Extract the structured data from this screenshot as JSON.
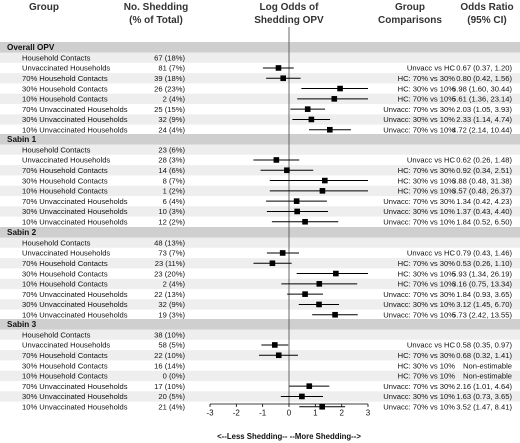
{
  "chart_data": {
    "type": "forest",
    "columns": {
      "group": "Group",
      "shedding": [
        "No. Shedding",
        "(% of Total)"
      ],
      "plot": [
        "Log Odds of",
        "Shedding OPV"
      ],
      "comparison": [
        "Group",
        "Comparisons"
      ],
      "odds_ratio": [
        "Odds Ratio",
        "(95% CI)"
      ]
    },
    "x_axis": {
      "range": [
        -3,
        3
      ],
      "ticks": [
        "-3",
        "-2",
        "-1",
        "0",
        "1",
        "2",
        "3"
      ],
      "caption": "<--Less Shedding-- --More Shedding-->",
      "reference_line": 0
    },
    "sections": [
      {
        "title": "Overall OPV",
        "rows": [
          {
            "group": "Household Contacts",
            "shed": "67 (18%)",
            "comparison": "",
            "or_text": "",
            "est": null,
            "lo": null,
            "hi": null
          },
          {
            "group": "Unvaccinated Households",
            "shed": "81 (7%)",
            "comparison": "Unvacc vs HC",
            "or_text": "0.67 (0.37, 1.20)",
            "est": -0.4,
            "lo": -0.99,
            "hi": 0.18
          },
          {
            "group": "70% Household Contacts",
            "shed": "39 (18%)",
            "comparison": "HC: 70% vs 30%",
            "or_text": "0.80 (0.42, 1.56)",
            "est": -0.22,
            "lo": -0.87,
            "hi": 0.44
          },
          {
            "group": "30% Household Contacts",
            "shed": "26 (23%)",
            "comparison": "HC: 30% vs 10%",
            "or_text": "6.98 (1.60, 30.44)",
            "est": 1.94,
            "lo": 0.47,
            "hi": 3.42
          },
          {
            "group": "10% Household Contacts",
            "shed": "2 (4%)",
            "comparison": "HC: 70% vs 10%",
            "or_text": "5.61 (1.36, 23.14)",
            "est": 1.72,
            "lo": 0.31,
            "hi": 3.14
          },
          {
            "group": "70% Unvaccinated Households",
            "shed": "25 (15%)",
            "comparison": "Unvacc: 70% vs 30%",
            "or_text": "2.03 (1.05, 3.93)",
            "est": 0.71,
            "lo": 0.05,
            "hi": 1.37
          },
          {
            "group": "30% Unvaccinated Households",
            "shed": "32 (9%)",
            "comparison": "Unvacc: 30% vs 10%",
            "or_text": "2.33 (1.14, 4.74)",
            "est": 0.85,
            "lo": 0.13,
            "hi": 1.56
          },
          {
            "group": "10% Unvaccinated Households",
            "shed": "24 (4%)",
            "comparison": "Unvacc: 70% vs 10%",
            "or_text": "4.72 (2.14, 10.44)",
            "est": 1.55,
            "lo": 0.76,
            "hi": 2.35
          }
        ]
      },
      {
        "title": "Sabin 1",
        "rows": [
          {
            "group": "Household Contacts",
            "shed": "23 (6%)",
            "comparison": "",
            "or_text": "",
            "est": null,
            "lo": null,
            "hi": null
          },
          {
            "group": "Unvaccinated Households",
            "shed": "28 (3%)",
            "comparison": "Unvacc vs HC",
            "or_text": "0.62 (0.26, 1.48)",
            "est": -0.48,
            "lo": -1.35,
            "hi": 0.39
          },
          {
            "group": "70% Household Contacts",
            "shed": "14 (6%)",
            "comparison": "HC: 70% vs 30%",
            "or_text": "0.92 (0.34, 2.51)",
            "est": -0.08,
            "lo": -1.08,
            "hi": 0.92
          },
          {
            "group": "30% Household Contacts",
            "shed": "8 (7%)",
            "comparison": "HC: 30% vs 10%",
            "or_text": "3.88 (0.48, 31.38)",
            "est": 1.36,
            "lo": -0.73,
            "hi": 3.45
          },
          {
            "group": "10% Household Contacts",
            "shed": "1 (2%)",
            "comparison": "HC: 70% vs 10%",
            "or_text": "3.57 (0.48, 26.37)",
            "est": 1.27,
            "lo": -0.73,
            "hi": 3.27
          },
          {
            "group": "70% Unvaccinated Households",
            "shed": "6 (4%)",
            "comparison": "Unvacc: 70% vs 30%",
            "or_text": "1.34 (0.42, 4.23)",
            "est": 0.29,
            "lo": -0.87,
            "hi": 1.44
          },
          {
            "group": "30% Unvaccinated Households",
            "shed": "10 (3%)",
            "comparison": "Unvacc: 30% vs 10%",
            "or_text": "1.37 (0.43, 4.40)",
            "est": 0.31,
            "lo": -0.84,
            "hi": 1.48
          },
          {
            "group": "10% Unvaccinated Households",
            "shed": "12 (2%)",
            "comparison": "Unvacc: 70% vs 10%",
            "or_text": "1.84 (0.52, 6.50)",
            "est": 0.61,
            "lo": -0.65,
            "hi": 1.87
          }
        ]
      },
      {
        "title": "Sabin 2",
        "rows": [
          {
            "group": "Household Contacts",
            "shed": "48 (13%)",
            "comparison": "",
            "or_text": "",
            "est": null,
            "lo": null,
            "hi": null
          },
          {
            "group": "Unvaccinated Households",
            "shed": "73 (7%)",
            "comparison": "Unvacc vs HC",
            "or_text": "0.79 (0.43, 1.46)",
            "est": -0.24,
            "lo": -0.84,
            "hi": 0.38
          },
          {
            "group": "70% Household Contacts",
            "shed": "23 (11%)",
            "comparison": "HC: 70% vs 30%",
            "or_text": "0.53 (0.26, 1.10)",
            "est": -0.63,
            "lo": -1.35,
            "hi": 0.1
          },
          {
            "group": "30% Household Contacts",
            "shed": "23 (20%)",
            "comparison": "HC: 30% vs 10%",
            "or_text": "5.93 (1.34, 26.19)",
            "est": 1.78,
            "lo": 0.29,
            "hi": 3.27
          },
          {
            "group": "10% Household Contacts",
            "shed": "2 (4%)",
            "comparison": "HC: 70% vs 10%",
            "or_text": "3.16 (0.75, 13.34)",
            "est": 1.15,
            "lo": -0.29,
            "hi": 2.59
          },
          {
            "group": "70% Unvaccinated Households",
            "shed": "22 (13%)",
            "comparison": "Unvacc: 70% vs 30%",
            "or_text": "1.84 (0.93, 3.65)",
            "est": 0.61,
            "lo": -0.07,
            "hi": 1.29
          },
          {
            "group": "30% Unvaccinated Households",
            "shed": "32 (9%)",
            "comparison": "Unvacc: 30% vs 10%",
            "or_text": "3.12 (1.45, 6.70)",
            "est": 1.14,
            "lo": 0.37,
            "hi": 1.9
          },
          {
            "group": "10% Unvaccinated Households",
            "shed": "19 (3%)",
            "comparison": "Unvacc: 70% vs 10%",
            "or_text": "5.73 (2.42, 13.55)",
            "est": 1.75,
            "lo": 0.88,
            "hi": 2.61
          }
        ]
      },
      {
        "title": "Sabin 3",
        "rows": [
          {
            "group": "Household Contacts",
            "shed": "38 (10%)",
            "comparison": "",
            "or_text": "",
            "est": null,
            "lo": null,
            "hi": null
          },
          {
            "group": "Unvaccinated Households",
            "shed": "58 (5%)",
            "comparison": "Unvacc vs HC",
            "or_text": "0.58 (0.35, 0.97)",
            "est": -0.54,
            "lo": -1.05,
            "hi": -0.03
          },
          {
            "group": "70% Household Contacts",
            "shed": "22 (10%)",
            "comparison": "HC: 70% vs 30%",
            "or_text": "0.68 (0.32, 1.41)",
            "est": -0.39,
            "lo": -1.14,
            "hi": 0.34
          },
          {
            "group": "30% Household Contacts",
            "shed": "16 (14%)",
            "comparison": "HC: 30% vs 10%",
            "or_text": "Non-estimable",
            "est": null,
            "lo": null,
            "hi": null
          },
          {
            "group": "10% Household Contacts",
            "shed": "0 (0%)",
            "comparison": "HC: 70% vs 10%",
            "or_text": "Non-estimable",
            "est": null,
            "lo": null,
            "hi": null
          },
          {
            "group": "70% Unvaccinated Households",
            "shed": "17 (10%)",
            "comparison": "Unvacc: 70% vs 30%",
            "or_text": "2.16 (1.01, 4.64)",
            "est": 0.77,
            "lo": 0.01,
            "hi": 1.53
          },
          {
            "group": "30% Unvaccinated Households",
            "shed": "20 (5%)",
            "comparison": "Unvacc: 30% vs 10%",
            "or_text": "1.63 (0.73, 3.65)",
            "est": 0.49,
            "lo": -0.31,
            "hi": 1.29
          },
          {
            "group": "10% Unvaccinated Households",
            "shed": "21 (4%)",
            "comparison": "Unvacc: 70% vs 10%",
            "or_text": "3.52 (1.47, 8.41)",
            "est": 1.26,
            "lo": 0.39,
            "hi": 2.13
          }
        ]
      }
    ],
    "colors": {
      "header_band": "#cfcfcf",
      "stripe": "#eeeeee",
      "marker": "#000000"
    }
  }
}
